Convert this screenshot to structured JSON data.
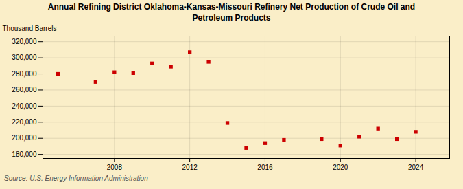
{
  "chart_data": {
    "type": "scatter",
    "title": "Annual Refining District Oklahoma-Kansas-Missouri Refinery Net Production of Crude Oil and\nPetroleum Products",
    "ylabel": "Thousand Barrels",
    "source": "Source: U.S. Energy Information Administration",
    "background_color": "#faeec8",
    "x": [
      2005,
      2007,
      2008,
      2009,
      2010,
      2011,
      2012,
      2013,
      2014,
      2015,
      2016,
      2017,
      2019,
      2020,
      2021,
      2022,
      2023,
      2024
    ],
    "values": [
      280000,
      270000,
      282000,
      281000,
      293000,
      289000,
      307000,
      295000,
      219000,
      188000,
      194000,
      198000,
      199000,
      191000,
      202000,
      212000,
      199000,
      208000
    ],
    "color": "#cc0000",
    "marker": "square",
    "xlim": [
      2004.2,
      2025.8
    ],
    "xticks": [
      2008,
      2012,
      2016,
      2020,
      2024
    ],
    "ylim": [
      175000,
      327000
    ],
    "yticks": [
      {
        "value": 180000,
        "label": "180,000"
      },
      {
        "value": 200000,
        "label": "200,000"
      },
      {
        "value": 220000,
        "label": "220,000"
      },
      {
        "value": 240000,
        "label": "240,000"
      },
      {
        "value": 260000,
        "label": "260,000"
      },
      {
        "value": 280000,
        "label": "280,000"
      },
      {
        "value": 300000,
        "label": "300,000"
      },
      {
        "value": 320000,
        "label": "320,000"
      }
    ],
    "grid": true
  }
}
